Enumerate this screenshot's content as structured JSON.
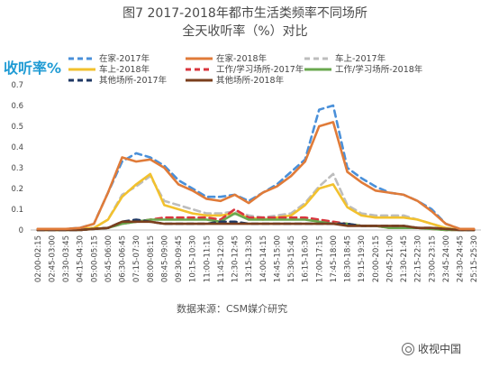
{
  "chart_data": {
    "type": "line",
    "title": "图7 2017-2018年都市生活类频率不同场所",
    "subtitle": "全天收听率（%）对比",
    "ylabel": "收听率%",
    "xlabel": "",
    "ylim": [
      0,
      0.7
    ],
    "yticks": [
      0,
      0.1,
      0.2,
      0.3,
      0.4,
      0.5,
      0.6,
      0.7
    ],
    "ytick_labels": [
      "0",
      "0.1",
      "0.2",
      "0.3",
      "0.4",
      "0.5",
      "0.6",
      "0.7"
    ],
    "grid": false,
    "legend_placement": "top",
    "x": [
      "02:00-02:15",
      "02:45-03:00",
      "03:30-03:45",
      "04:15-04:30",
      "05:00-05:15",
      "05:45-06:00",
      "06:30-06:45",
      "07:15-07:30",
      "08:00-08:15",
      "08:45-09:00",
      "09:30-09:45",
      "10:15-10:30",
      "11:00-11:15",
      "11:45-12:00",
      "12:30-12:45",
      "13:15-13:30",
      "14:00-14:15",
      "14:45-15:00",
      "15:30-15:45",
      "16:15-16:30",
      "17:00-17:15",
      "17:45-18:00",
      "18:30-18:45",
      "19:15-19:30",
      "20:00-20:15",
      "20:45-21:00",
      "21:30-21:45",
      "22:15-22:30",
      "23:00-23:15",
      "23:45-24:00",
      "24:30-24:45",
      "25:15-25:30"
    ],
    "series": [
      {
        "name": "在家-2017年",
        "color": "#4a90d9",
        "dash": "dash",
        "values": [
          0.005,
          0.005,
          0.005,
          0.01,
          0.03,
          0.18,
          0.33,
          0.37,
          0.35,
          0.31,
          0.24,
          0.2,
          0.16,
          0.16,
          0.17,
          0.14,
          0.18,
          0.22,
          0.28,
          0.34,
          0.58,
          0.6,
          0.3,
          0.25,
          0.21,
          0.18,
          0.17,
          0.14,
          0.1,
          0.03,
          0.005,
          0.005
        ]
      },
      {
        "name": "在家-2018年",
        "color": "#e07b39",
        "dash": "solid",
        "values": [
          0.005,
          0.005,
          0.005,
          0.01,
          0.03,
          0.18,
          0.35,
          0.33,
          0.34,
          0.3,
          0.22,
          0.19,
          0.15,
          0.14,
          0.17,
          0.13,
          0.18,
          0.21,
          0.26,
          0.33,
          0.5,
          0.52,
          0.28,
          0.23,
          0.19,
          0.18,
          0.17,
          0.14,
          0.09,
          0.03,
          0.005,
          0.005
        ]
      },
      {
        "name": "车上-2017年",
        "color": "#bdbdbd",
        "dash": "dash",
        "values": [
          0.0,
          0.0,
          0.0,
          0.005,
          0.01,
          0.05,
          0.17,
          0.21,
          0.26,
          0.14,
          0.12,
          0.1,
          0.08,
          0.08,
          0.09,
          0.07,
          0.06,
          0.07,
          0.08,
          0.13,
          0.21,
          0.27,
          0.12,
          0.08,
          0.07,
          0.07,
          0.07,
          0.05,
          0.03,
          0.01,
          0.0,
          0.0
        ]
      },
      {
        "name": "车上-2018年",
        "color": "#f2c12e",
        "dash": "solid",
        "values": [
          0.0,
          0.0,
          0.0,
          0.005,
          0.01,
          0.05,
          0.16,
          0.22,
          0.27,
          0.12,
          0.1,
          0.08,
          0.07,
          0.07,
          0.08,
          0.06,
          0.05,
          0.06,
          0.07,
          0.12,
          0.2,
          0.22,
          0.11,
          0.07,
          0.06,
          0.06,
          0.06,
          0.05,
          0.03,
          0.01,
          0.0,
          0.0
        ]
      },
      {
        "name": "工作/学习场所-2017年",
        "color": "#d9363e",
        "dash": "dash",
        "values": [
          0.0,
          0.0,
          0.0,
          0.0,
          0.005,
          0.01,
          0.03,
          0.04,
          0.05,
          0.06,
          0.06,
          0.06,
          0.06,
          0.05,
          0.1,
          0.06,
          0.06,
          0.06,
          0.06,
          0.06,
          0.05,
          0.04,
          0.03,
          0.02,
          0.02,
          0.01,
          0.01,
          0.01,
          0.005,
          0.0,
          0.0,
          0.0
        ]
      },
      {
        "name": "工作/学习场所-2018年",
        "color": "#6aa84f",
        "dash": "solid",
        "values": [
          0.0,
          0.0,
          0.0,
          0.0,
          0.005,
          0.01,
          0.03,
          0.04,
          0.05,
          0.05,
          0.05,
          0.05,
          0.05,
          0.04,
          0.08,
          0.05,
          0.05,
          0.05,
          0.05,
          0.05,
          0.04,
          0.03,
          0.03,
          0.02,
          0.02,
          0.01,
          0.01,
          0.01,
          0.005,
          0.0,
          0.0,
          0.0
        ]
      },
      {
        "name": "其他场所-2017年",
        "color": "#1f3864",
        "dash": "dash",
        "values": [
          0.0,
          0.0,
          0.0,
          0.0,
          0.005,
          0.01,
          0.04,
          0.05,
          0.04,
          0.03,
          0.03,
          0.03,
          0.03,
          0.04,
          0.04,
          0.03,
          0.03,
          0.03,
          0.03,
          0.03,
          0.03,
          0.03,
          0.03,
          0.02,
          0.02,
          0.02,
          0.02,
          0.01,
          0.01,
          0.005,
          0.0,
          0.0
        ]
      },
      {
        "name": "其他场所-2018年",
        "color": "#7b3f1d",
        "dash": "solid",
        "values": [
          0.0,
          0.0,
          0.0,
          0.0,
          0.005,
          0.01,
          0.04,
          0.04,
          0.04,
          0.03,
          0.03,
          0.03,
          0.03,
          0.03,
          0.03,
          0.03,
          0.03,
          0.03,
          0.03,
          0.03,
          0.03,
          0.03,
          0.02,
          0.02,
          0.02,
          0.02,
          0.02,
          0.01,
          0.01,
          0.005,
          0.0,
          0.0
        ]
      }
    ]
  },
  "source_text": "数据来源：CSM媒介研究",
  "watermark_text": "收视中国",
  "watermark_icon": "wechat-circle-icon"
}
